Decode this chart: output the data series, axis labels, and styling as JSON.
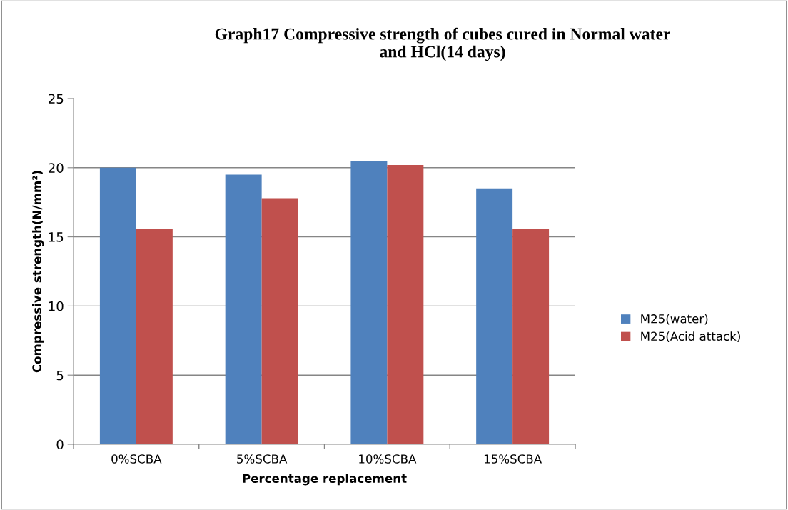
{
  "chart_data": {
    "type": "bar",
    "title": "Graph17 Compressive strength of cubes cured in Normal water\nand HCl(14 days)",
    "xlabel": "Percentage replacement",
    "ylabel": "Compressive strength(N/mm²)",
    "categories": [
      "0%SCBA",
      "5%SCBA",
      "10%SCBA",
      "15%SCBA"
    ],
    "series": [
      {
        "name": "M25(water)",
        "color": "#4f81bd",
        "values": [
          20.0,
          19.5,
          20.5,
          18.5
        ]
      },
      {
        "name": "M25(Acid attack)",
        "color": "#c0504d",
        "values": [
          15.6,
          17.8,
          20.2,
          15.6
        ]
      }
    ],
    "ylim": [
      0,
      25
    ],
    "yticks": [
      0,
      5,
      10,
      15,
      20,
      25
    ],
    "grid": "y",
    "legend": "right"
  }
}
